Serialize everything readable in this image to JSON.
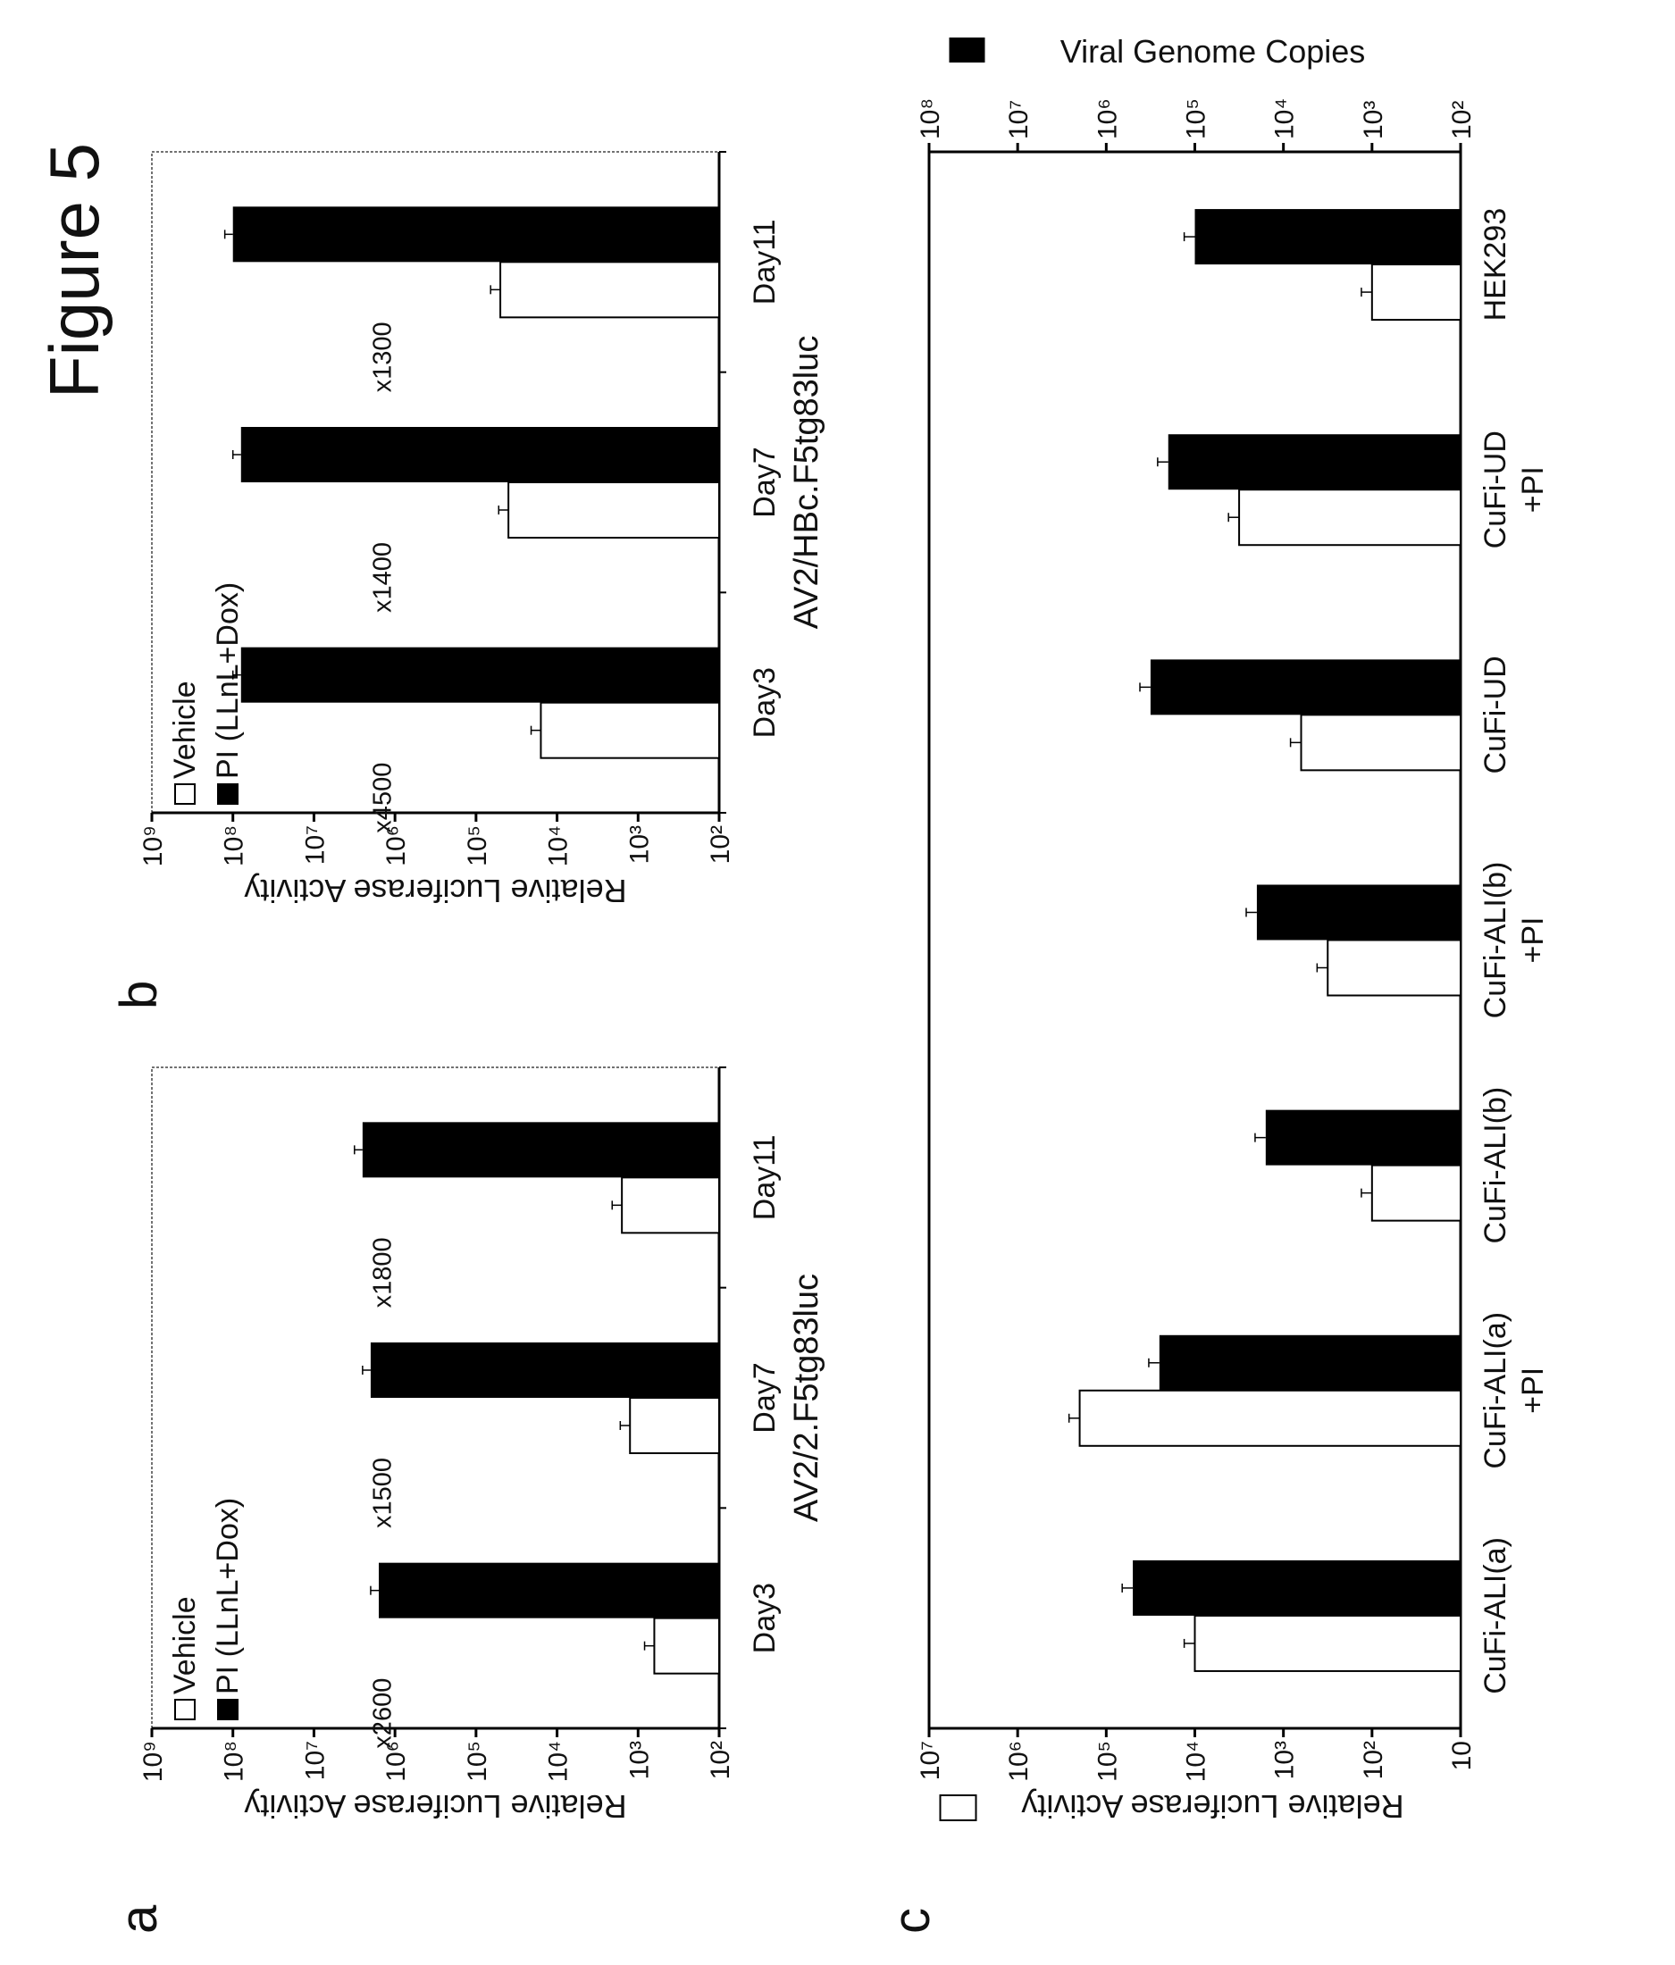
{
  "figure_title": "Figure 5",
  "chart_data": [
    {
      "panel": "a",
      "type": "bar",
      "title": "AV2/2.F5tg83luc",
      "ylabel": "Relative Luciferase Activity",
      "yscale": "log10",
      "ylim": [
        2,
        9
      ],
      "ytick_labels": [
        "10²",
        "10³",
        "10⁴",
        "10⁵",
        "10⁶",
        "10⁷",
        "10⁸",
        "10⁹"
      ],
      "categories": [
        "Day3",
        "Day7",
        "Day11"
      ],
      "legend": [
        "Vehicle",
        "PI (LLnL+Dox)"
      ],
      "legend_position": "top-left",
      "series": [
        {
          "name": "Vehicle",
          "color": "#ffffff",
          "log10_values": [
            2.8,
            3.1,
            3.2
          ]
        },
        {
          "name": "PI (LLnL+Dox)",
          "color": "#000000",
          "log10_values": [
            6.2,
            6.3,
            6.4
          ]
        }
      ],
      "fold_labels": [
        "x2600",
        "x1500",
        "x1800"
      ]
    },
    {
      "panel": "b",
      "type": "bar",
      "title": "AV2/HBc.F5tg83luc",
      "ylabel": "Relative Luciferase Activity",
      "yscale": "log10",
      "ylim": [
        2,
        9
      ],
      "ytick_labels": [
        "10²",
        "10³",
        "10⁴",
        "10⁵",
        "10⁶",
        "10⁷",
        "10⁸",
        "10⁹"
      ],
      "categories": [
        "Day3",
        "Day7",
        "Day11"
      ],
      "legend": [
        "Vehicle",
        "PI (LLnL+Dox)"
      ],
      "legend_position": "top-left",
      "series": [
        {
          "name": "Vehicle",
          "color": "#ffffff",
          "log10_values": [
            4.2,
            4.6,
            4.7
          ]
        },
        {
          "name": "PI (LLnL+Dox)",
          "color": "#000000",
          "log10_values": [
            7.9,
            7.9,
            8.0
          ]
        }
      ],
      "fold_labels": [
        "x4500",
        "x1400",
        "x1300"
      ]
    },
    {
      "panel": "c",
      "type": "bar",
      "ylabel_left": "Relative Luciferase Activity",
      "ylabel_right": "Viral Genome Copies",
      "yscale": "log10",
      "ylim_left": [
        1,
        7
      ],
      "ylim_right": [
        2,
        8
      ],
      "ytick_labels_left": [
        "10",
        "10²",
        "10³",
        "10⁴",
        "10⁵",
        "10⁶",
        "10⁷"
      ],
      "ytick_labels_right": [
        "10²",
        "10³",
        "10⁴",
        "10⁵",
        "10⁶",
        "10⁷",
        "10⁸"
      ],
      "categories": [
        {
          "line1": "CuFi-ALI(a)",
          "line2": ""
        },
        {
          "line1": "CuFi-ALI(a)",
          "line2": "+PI"
        },
        {
          "line1": "CuFi-ALI(b)",
          "line2": ""
        },
        {
          "line1": "CuFi-ALI(b)",
          "line2": "+PI"
        },
        {
          "line1": "CuFi-UD",
          "line2": ""
        },
        {
          "line1": "CuFi-UD",
          "line2": "+PI"
        },
        {
          "line1": "HEK293",
          "line2": ""
        }
      ],
      "series": [
        {
          "name": "Relative Luciferase Activity",
          "axis": "left",
          "color": "#ffffff",
          "log10_values": [
            4.0,
            5.3,
            2.0,
            2.5,
            2.8,
            3.5,
            2.0
          ]
        },
        {
          "name": "Viral Genome Copies",
          "axis": "right",
          "color": "#000000",
          "log10_values": [
            5.7,
            5.4,
            4.2,
            4.3,
            5.5,
            5.3,
            5.0
          ]
        }
      ]
    }
  ]
}
